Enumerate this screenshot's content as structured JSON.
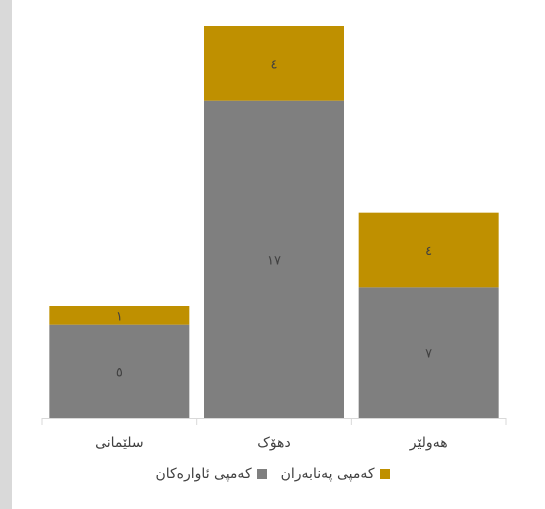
{
  "chart_data": {
    "type": "bar",
    "stacked": true,
    "categories": [
      "سلێمانی",
      "دهۆک",
      "هەولێر"
    ],
    "series": [
      {
        "name": "کەمپی ئاوارەکان",
        "values": [
          5,
          17,
          7
        ],
        "value_labels": [
          "٥",
          "١٧",
          "٧"
        ],
        "color": "#7f7f7f"
      },
      {
        "name": "کەمپی پەنابەران",
        "values": [
          1,
          4,
          4
        ],
        "value_labels": [
          "١",
          "٤",
          "٤"
        ],
        "color": "#bf9000"
      }
    ],
    "title": "",
    "xlabel": "",
    "ylabel": "",
    "ylim": [
      0,
      21
    ],
    "grid": false,
    "legend_position": "bottom"
  },
  "colors": {
    "label_color": "#404040",
    "axis_color": "#d9d9d9",
    "frame_background": "#d9d9d9"
  }
}
